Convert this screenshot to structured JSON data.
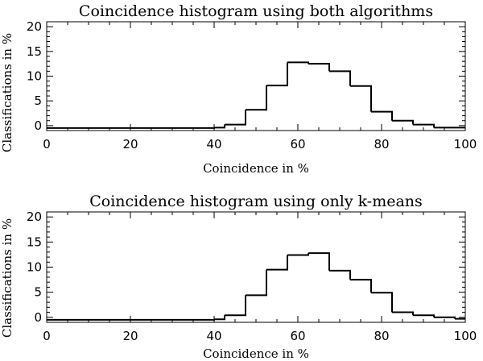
{
  "chart_data": [
    {
      "type": "histogram",
      "title": "Coincidence histogram using both algorithms",
      "xlabel": "Coincidence in %",
      "ylabel": "Classifications in %",
      "xlim": [
        0,
        100
      ],
      "ylim": [
        -1,
        21
      ],
      "xticks": [
        0,
        20,
        40,
        60,
        80,
        100
      ],
      "yticks": [
        0,
        5,
        10,
        15,
        20
      ],
      "bin_edges": [
        0,
        5,
        10,
        15,
        20,
        25,
        30,
        35,
        40,
        42.5,
        47.5,
        52.5,
        57.5,
        62.5,
        67.5,
        72.5,
        77.5,
        82.5,
        87.5,
        92.5,
        100
      ],
      "values": [
        -0.5,
        -0.5,
        -0.5,
        -0.5,
        -0.5,
        -0.5,
        -0.5,
        -0.5,
        -0.4,
        0.2,
        3.2,
        8.1,
        12.8,
        12.5,
        11.0,
        8.0,
        2.8,
        1.0,
        0.2,
        -0.4
      ],
      "tick_labels": {
        "x": [
          "0",
          "20",
          "40",
          "60",
          "80",
          "100"
        ],
        "y": [
          "0",
          "5",
          "10",
          "15",
          "20"
        ]
      }
    },
    {
      "type": "histogram",
      "title": "Coincidence histogram using only k-means",
      "xlabel": "Coincidence in %",
      "ylabel": "Classifications in %",
      "xlim": [
        0,
        100
      ],
      "ylim": [
        -1,
        21
      ],
      "xticks": [
        0,
        20,
        40,
        60,
        80,
        100
      ],
      "yticks": [
        0,
        5,
        10,
        15,
        20
      ],
      "bin_edges": [
        0,
        5,
        10,
        15,
        20,
        25,
        30,
        35,
        40,
        42.5,
        47.5,
        52.5,
        57.5,
        62.5,
        67.5,
        72.5,
        77.5,
        82.5,
        87.5,
        92.5,
        97.5,
        100
      ],
      "values": [
        -0.5,
        -0.5,
        -0.5,
        -0.5,
        -0.5,
        -0.5,
        -0.5,
        -0.5,
        -0.4,
        0.4,
        4.4,
        9.5,
        12.4,
        12.8,
        9.3,
        7.5,
        4.9,
        1.0,
        0.4,
        0.0,
        -0.3
      ],
      "tick_labels": {
        "x": [
          "0",
          "20",
          "40",
          "60",
          "80",
          "100"
        ],
        "y": [
          "0",
          "5",
          "10",
          "15",
          "20"
        ]
      }
    }
  ]
}
